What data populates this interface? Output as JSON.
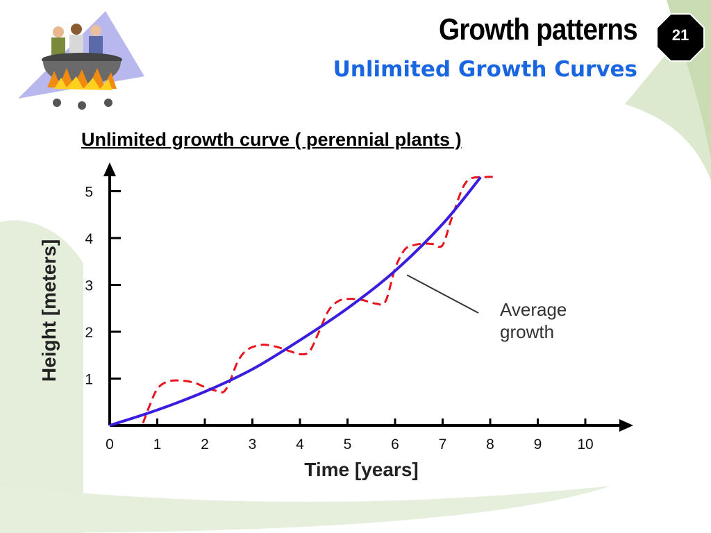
{
  "slide": {
    "title": "Growth patterns",
    "subtitle": "Unlimited Growth Curves",
    "page_number": "21",
    "heading": "Unlimited growth curve ( perennial plants )",
    "colors": {
      "subtitle": "#1a66e0",
      "badge": "#000000",
      "background_accent": "#d8e6c8"
    },
    "clipart": "people-in-cauldron-over-fire"
  },
  "chart_data": {
    "type": "line",
    "xlabel": "Time [years]",
    "ylabel": "Height [meters]",
    "x_ticks": [
      0,
      1,
      2,
      3,
      4,
      5,
      6,
      7,
      8,
      9,
      10
    ],
    "y_ticks": [
      1,
      2,
      3,
      4,
      5
    ],
    "xlim": [
      0,
      10.5
    ],
    "ylim": [
      0,
      5.5
    ],
    "grid": false,
    "annotation": "Average growth",
    "series": [
      {
        "name": "Average growth",
        "style": "solid",
        "color": "#3a1ee0",
        "x": [
          0,
          1,
          2,
          3,
          4,
          5,
          6,
          7,
          7.8
        ],
        "y": [
          0,
          0.33,
          0.72,
          1.2,
          1.82,
          2.5,
          3.3,
          4.3,
          5.3
        ]
      },
      {
        "style": "dashed",
        "color": "#e8141e",
        "x": [
          0.7,
          0.85,
          1.0,
          1.2,
          1.45,
          1.75,
          2.0,
          2.2,
          2.4,
          2.55,
          2.7,
          2.9,
          3.2,
          3.5,
          3.8,
          4.0,
          4.2,
          4.4,
          4.6,
          4.8,
          5.0,
          5.3,
          5.6,
          5.8,
          6.0,
          6.2,
          6.4,
          6.6,
          6.8,
          7.0,
          7.2,
          7.5,
          7.9,
          8.1
        ],
        "y": [
          0.05,
          0.45,
          0.78,
          0.93,
          0.96,
          0.92,
          0.82,
          0.75,
          0.72,
          1.0,
          1.38,
          1.62,
          1.72,
          1.68,
          1.58,
          1.52,
          1.58,
          2.0,
          2.45,
          2.65,
          2.7,
          2.68,
          2.6,
          2.65,
          3.35,
          3.75,
          3.85,
          3.88,
          3.87,
          3.85,
          4.45,
          5.2,
          5.3,
          5.3
        ]
      }
    ]
  }
}
